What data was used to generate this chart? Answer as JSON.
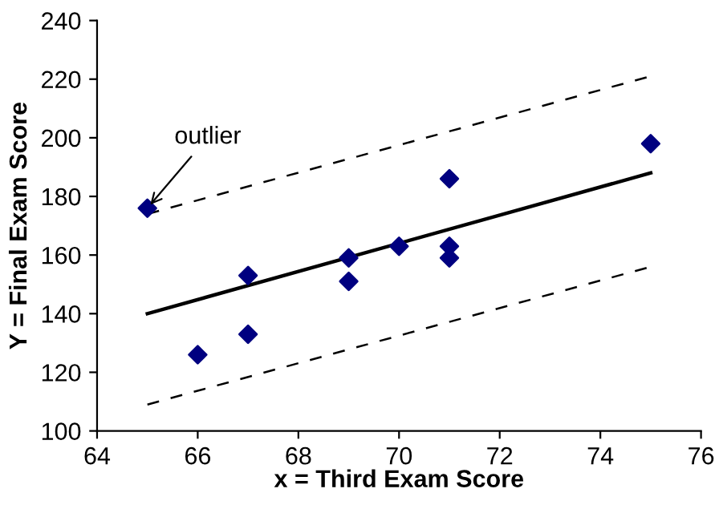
{
  "chart_data": {
    "type": "scatter",
    "xlabel": "x = Third Exam Score",
    "ylabel": "Y = Final Exam Score",
    "xlim": [
      64,
      76
    ],
    "xticks": [
      64,
      66,
      68,
      70,
      72,
      74,
      76
    ],
    "ylim": [
      100,
      240
    ],
    "yticks": [
      100,
      120,
      140,
      160,
      180,
      200,
      220,
      240
    ],
    "grid": false,
    "legend": false,
    "series": [
      {
        "color": "#000080",
        "marker": "diamond",
        "x": [
          65,
          66,
          67,
          67,
          69,
          69,
          70,
          71,
          71,
          71,
          75
        ],
        "values": [
          176,
          126,
          153,
          133,
          159,
          151,
          163,
          186,
          163,
          159,
          198
        ]
      },
      {
        "type": "line",
        "color": "#000000",
        "line_style": "solid",
        "x": [
          65,
          75
        ],
        "values": [
          140,
          188
        ]
      },
      {
        "type": "line",
        "color": "#000000",
        "line_style": "dashed",
        "x": [
          65,
          75
        ],
        "values": [
          174,
          221
        ]
      },
      {
        "type": "line",
        "color": "#000000",
        "line_style": "dashed",
        "x": [
          65,
          75
        ],
        "values": [
          109,
          156
        ]
      }
    ],
    "annotations": [
      {
        "text": "outlier",
        "x": 65,
        "y": 176
      }
    ]
  }
}
